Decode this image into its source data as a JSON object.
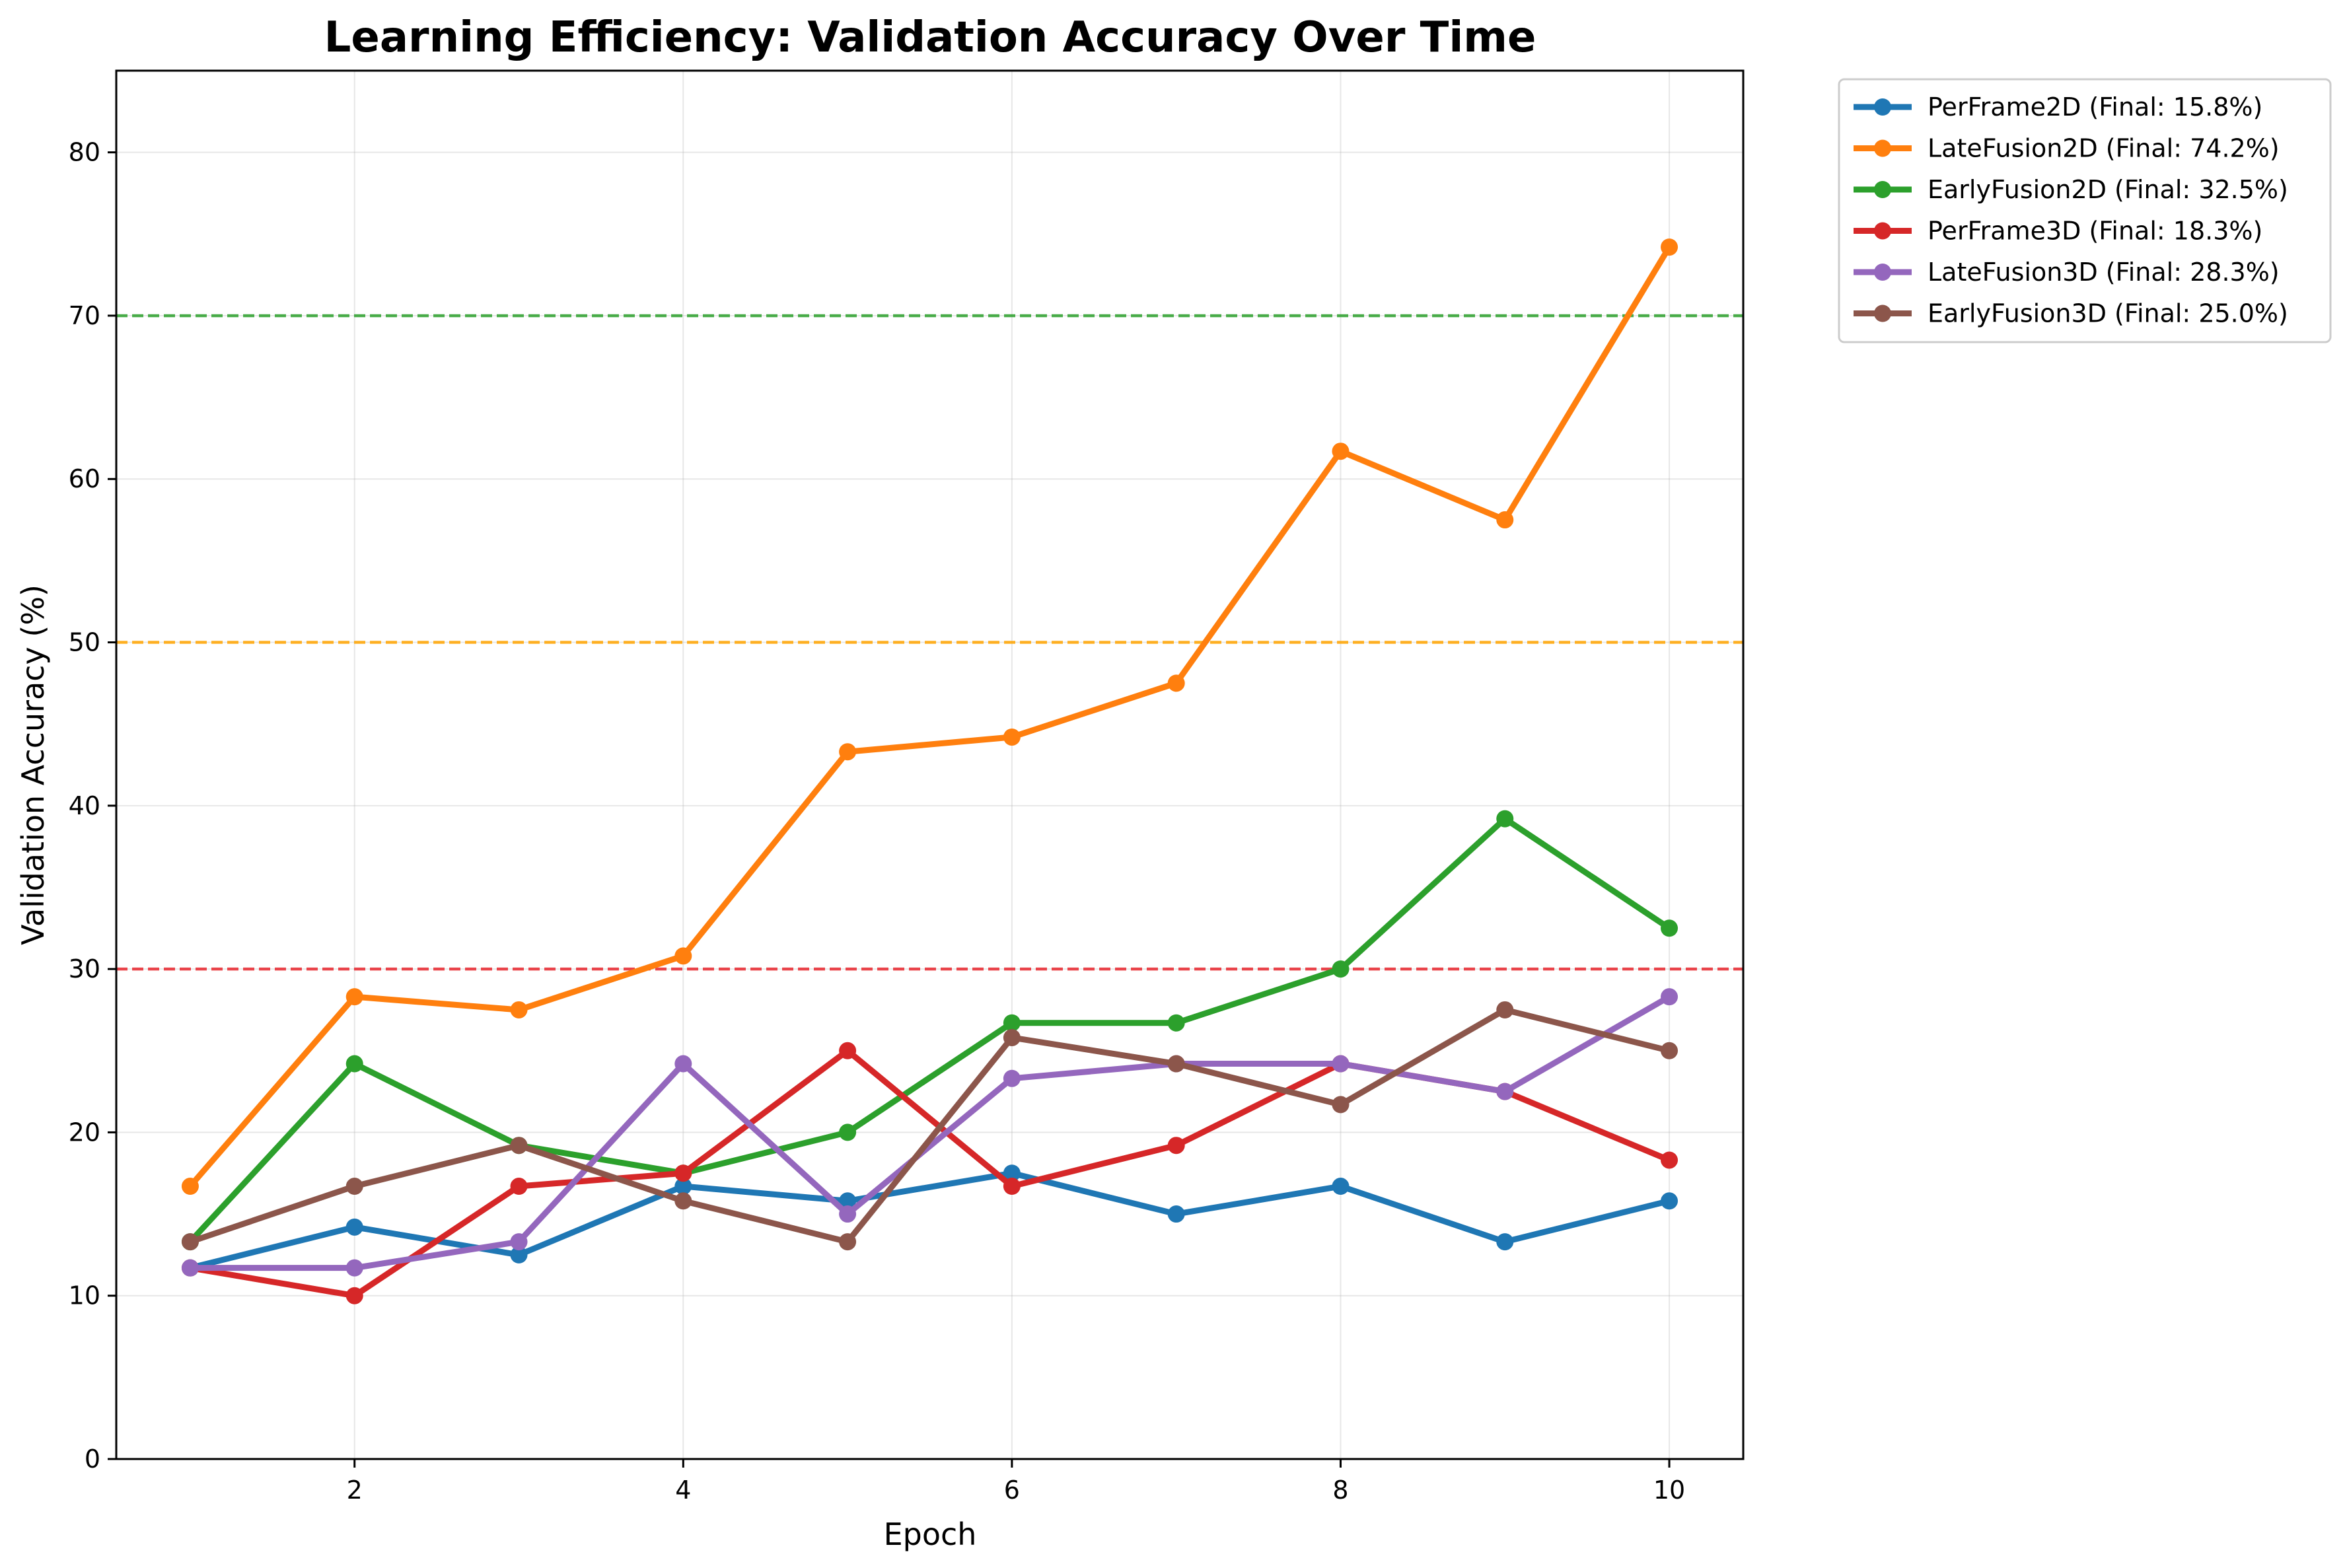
{
  "chart_data": {
    "type": "line",
    "title": "Learning Efficiency: Validation Accuracy Over Time",
    "xlabel": "Epoch",
    "ylabel": "Validation Accuracy (%)",
    "xlim": [
      0.55,
      10.45
    ],
    "ylim": [
      0,
      85
    ],
    "xticks": [
      2,
      4,
      6,
      8,
      10
    ],
    "yticks": [
      0,
      10,
      20,
      30,
      40,
      50,
      60,
      70,
      80
    ],
    "grid": true,
    "legend_position": "outside-top-right",
    "x": [
      1,
      2,
      3,
      4,
      5,
      6,
      7,
      8,
      9,
      10
    ],
    "series": [
      {
        "name": "PerFrame2D (Final: 15.8%)",
        "color": "#1f77b4",
        "values": [
          11.7,
          14.2,
          12.5,
          16.7,
          15.8,
          17.5,
          15.0,
          16.7,
          13.3,
          15.8
        ]
      },
      {
        "name": "LateFusion2D (Final: 74.2%)",
        "color": "#ff7f0e",
        "values": [
          16.7,
          28.3,
          27.5,
          30.8,
          43.3,
          44.2,
          47.5,
          61.7,
          57.5,
          74.2
        ]
      },
      {
        "name": "EarlyFusion2D (Final: 32.5%)",
        "color": "#2ca02c",
        "values": [
          13.3,
          24.2,
          19.2,
          17.5,
          20.0,
          26.7,
          26.7,
          30.0,
          39.2,
          32.5
        ]
      },
      {
        "name": "PerFrame3D (Final: 18.3%)",
        "color": "#d62728",
        "values": [
          11.7,
          10.0,
          16.7,
          17.5,
          25.0,
          16.7,
          19.2,
          24.2,
          22.5,
          18.3
        ]
      },
      {
        "name": "LateFusion3D (Final: 28.3%)",
        "color": "#9467bd",
        "values": [
          11.7,
          11.7,
          13.3,
          24.2,
          15.0,
          23.3,
          24.2,
          24.2,
          22.5,
          28.3
        ]
      },
      {
        "name": "EarlyFusion3D (Final: 25.0%)",
        "color": "#8c564b",
        "values": [
          13.3,
          16.7,
          19.2,
          15.8,
          13.3,
          25.8,
          24.2,
          21.7,
          27.5,
          25.0
        ]
      }
    ],
    "reference_lines": [
      {
        "y": 70,
        "color": "#2ca02c",
        "style": "dashed"
      },
      {
        "y": 50,
        "color": "#ffa500",
        "style": "dashed"
      },
      {
        "y": 30,
        "color": "#e8262e",
        "style": "dashed"
      }
    ]
  }
}
